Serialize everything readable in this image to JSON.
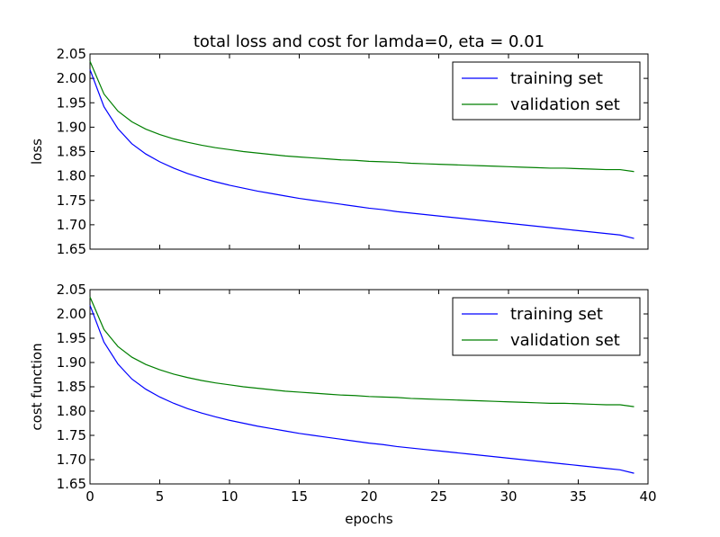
{
  "chart_data": [
    {
      "type": "line",
      "title": "total loss and cost for lamda=0, eta = 0.01",
      "xlabel": "",
      "ylabel": "loss",
      "xlim": [
        0,
        40
      ],
      "ylim": [
        1.65,
        2.05
      ],
      "xticks": [
        0,
        5,
        10,
        15,
        20,
        25,
        30,
        35,
        40
      ],
      "xtick_labels_visible": false,
      "yticks": [
        "2.05",
        "2.00",
        "1.95",
        "1.90",
        "1.85",
        "1.80",
        "1.75",
        "1.70",
        "1.65"
      ],
      "grid": false,
      "legend_position": "top-right",
      "x": [
        0,
        1,
        2,
        3,
        4,
        5,
        6,
        7,
        8,
        9,
        10,
        11,
        12,
        13,
        14,
        15,
        16,
        17,
        18,
        19,
        20,
        21,
        22,
        23,
        24,
        25,
        26,
        27,
        28,
        29,
        30,
        31,
        32,
        33,
        34,
        35,
        36,
        37,
        38,
        39
      ],
      "series": [
        {
          "name": "training set",
          "color": "#0000ff",
          "values": [
            2.018,
            1.942,
            1.897,
            1.866,
            1.845,
            1.829,
            1.816,
            1.805,
            1.796,
            1.788,
            1.781,
            1.775,
            1.769,
            1.764,
            1.759,
            1.754,
            1.75,
            1.746,
            1.742,
            1.738,
            1.734,
            1.731,
            1.727,
            1.724,
            1.721,
            1.718,
            1.715,
            1.712,
            1.709,
            1.706,
            1.703,
            1.7,
            1.697,
            1.694,
            1.691,
            1.688,
            1.685,
            1.682,
            1.679,
            1.672
          ]
        },
        {
          "name": "validation set",
          "color": "#007f00",
          "values": [
            2.035,
            1.968,
            1.933,
            1.911,
            1.896,
            1.885,
            1.876,
            1.869,
            1.863,
            1.858,
            1.854,
            1.85,
            1.847,
            1.844,
            1.841,
            1.839,
            1.837,
            1.835,
            1.833,
            1.832,
            1.83,
            1.829,
            1.828,
            1.826,
            1.825,
            1.824,
            1.823,
            1.822,
            1.821,
            1.82,
            1.819,
            1.818,
            1.817,
            1.816,
            1.816,
            1.815,
            1.814,
            1.813,
            1.813,
            1.809
          ]
        }
      ]
    },
    {
      "type": "line",
      "title": "",
      "xlabel": "epochs",
      "ylabel": "cost function",
      "xlim": [
        0,
        40
      ],
      "ylim": [
        1.65,
        2.05
      ],
      "xticks": [
        "0",
        "5",
        "10",
        "15",
        "20",
        "25",
        "30",
        "35",
        "40"
      ],
      "xtick_labels_visible": true,
      "yticks": [
        "2.05",
        "2.00",
        "1.95",
        "1.90",
        "1.85",
        "1.80",
        "1.75",
        "1.70",
        "1.65"
      ],
      "grid": false,
      "legend_position": "top-right",
      "x": [
        0,
        1,
        2,
        3,
        4,
        5,
        6,
        7,
        8,
        9,
        10,
        11,
        12,
        13,
        14,
        15,
        16,
        17,
        18,
        19,
        20,
        21,
        22,
        23,
        24,
        25,
        26,
        27,
        28,
        29,
        30,
        31,
        32,
        33,
        34,
        35,
        36,
        37,
        38,
        39
      ],
      "series": [
        {
          "name": "training set",
          "color": "#0000ff",
          "values": [
            2.018,
            1.942,
            1.897,
            1.866,
            1.845,
            1.829,
            1.816,
            1.805,
            1.796,
            1.788,
            1.781,
            1.775,
            1.769,
            1.764,
            1.759,
            1.754,
            1.75,
            1.746,
            1.742,
            1.738,
            1.734,
            1.731,
            1.727,
            1.724,
            1.721,
            1.718,
            1.715,
            1.712,
            1.709,
            1.706,
            1.703,
            1.7,
            1.697,
            1.694,
            1.691,
            1.688,
            1.685,
            1.682,
            1.679,
            1.672
          ]
        },
        {
          "name": "validation set",
          "color": "#007f00",
          "values": [
            2.035,
            1.968,
            1.933,
            1.911,
            1.896,
            1.885,
            1.876,
            1.869,
            1.863,
            1.858,
            1.854,
            1.85,
            1.847,
            1.844,
            1.841,
            1.839,
            1.837,
            1.835,
            1.833,
            1.832,
            1.83,
            1.829,
            1.828,
            1.826,
            1.825,
            1.824,
            1.823,
            1.822,
            1.821,
            1.82,
            1.819,
            1.818,
            1.817,
            1.816,
            1.816,
            1.815,
            1.814,
            1.813,
            1.813,
            1.809
          ]
        }
      ]
    }
  ]
}
